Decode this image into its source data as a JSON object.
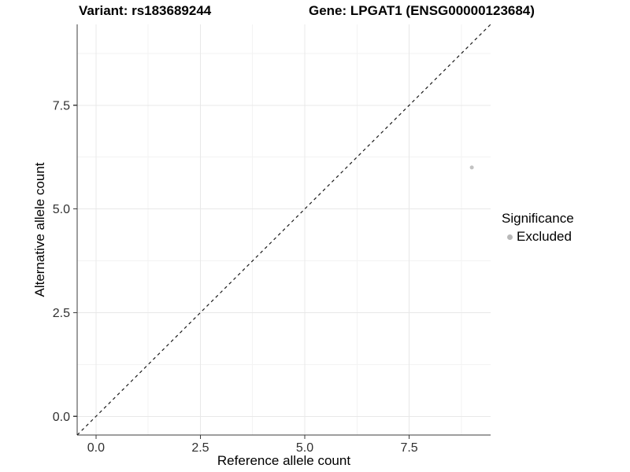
{
  "header": {
    "variant_title": "Variant: rs183689244",
    "gene_title": "Gene: LPGAT1 (ENSG00000123684)"
  },
  "axes": {
    "x": {
      "label": "Reference allele count",
      "tick_labels": [
        "0.0",
        "2.5",
        "5.0",
        "7.5"
      ]
    },
    "y": {
      "label": "Alternative allele count",
      "tick_labels": [
        "0.0",
        "2.5",
        "5.0",
        "7.5"
      ]
    }
  },
  "legend": {
    "title": "Significance",
    "items": [
      {
        "label": "Excluded",
        "marker_color": "#b8b8b8"
      }
    ]
  },
  "chart_data": {
    "type": "scatter",
    "title": "Variant: rs183689244 — Gene: LPGAT1 (ENSG00000123684)",
    "xlabel": "Reference allele count",
    "ylabel": "Alternative allele count",
    "xlim": [
      -0.45,
      9.45
    ],
    "ylim": [
      -0.45,
      9.45
    ],
    "xticks": [
      0.0,
      2.5,
      5.0,
      7.5
    ],
    "yticks": [
      0.0,
      2.5,
      5.0,
      7.5
    ],
    "minor_ticks": [
      1.25,
      3.75,
      6.25,
      8.75
    ],
    "grid": "major+minor",
    "legend_position": "right",
    "series": [
      {
        "name": "Excluded",
        "marker_color": "#c2c2c2",
        "marker_size_px": 5,
        "points": [
          [
            9,
            6
          ]
        ]
      }
    ],
    "reference_line": {
      "kind": "identity y=x",
      "slope": 1,
      "intercept": 0,
      "style": "dashed",
      "color": "#1a1a1a"
    }
  },
  "style": {
    "background": "#ffffff",
    "grid_major_color": "#e8e8e8",
    "grid_minor_color": "#f3f3f3",
    "axis_line_color": "#3c3c3c",
    "tick_label_color": "#303030"
  }
}
